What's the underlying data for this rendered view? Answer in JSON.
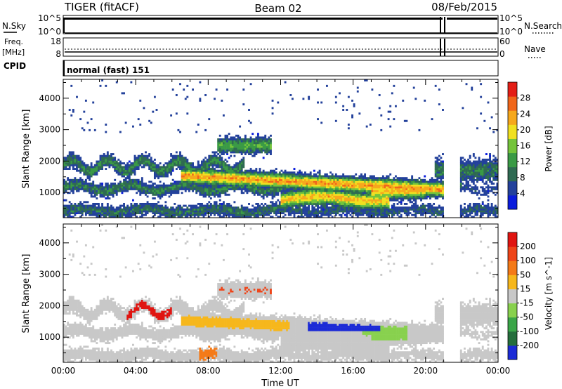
{
  "header": {
    "station": "TIGER (fitACF)",
    "beam": "Beam 02",
    "date": "08/Feb/2015"
  },
  "strip_nsky": {
    "left_label": "N.Sky",
    "right_label": "N.Search",
    "left_ticks": [
      "10^5",
      "10^0"
    ],
    "right_ticks": [
      "10^5",
      "10^0"
    ]
  },
  "strip_freq": {
    "left_label_1": "Freq.",
    "left_label_2": "[MHz]",
    "right_label": "Nave",
    "left_ticks": [
      "18",
      "8"
    ],
    "right_ticks": [
      "60",
      "0"
    ]
  },
  "cpid": {
    "label": "CPID",
    "value": "normal (fast) 151"
  },
  "chart_data": [
    {
      "type": "heatmap",
      "title": "",
      "ylabel": "Slant Range [km]",
      "xlabel": "",
      "xlim": [
        0,
        24
      ],
      "ylim": [
        200,
        4600
      ],
      "x_ticks": [],
      "y_ticks": [
        "1000",
        "2000",
        "3000",
        "4000"
      ],
      "colorbar": {
        "label": "Power [dB]",
        "ticks": [
          "28",
          "24",
          "20",
          "16",
          "12",
          "8",
          "4"
        ],
        "range": [
          0,
          32
        ],
        "colors": [
          "#0a1cdc",
          "#23419b",
          "#2f6a52",
          "#3a9a45",
          "#74c43b",
          "#f0e020",
          "#f6a81c",
          "#f0661a",
          "#e41e16"
        ]
      }
    },
    {
      "type": "heatmap",
      "title": "",
      "ylabel": "Slant Range [km]",
      "xlabel": "Time UT",
      "xlim": [
        0,
        24
      ],
      "ylim": [
        200,
        4600
      ],
      "x_ticks": [
        "00:00",
        "04:00",
        "08:00",
        "12:00",
        "16:00",
        "20:00",
        "00:00"
      ],
      "y_ticks": [
        "1000",
        "2000",
        "3000",
        "4000"
      ],
      "colorbar": {
        "label": "Velocity [m s^-1]",
        "ticks": [
          "200",
          "100",
          "50",
          "15",
          "-15",
          "-50",
          "-100",
          "-200"
        ],
        "colors": [
          "#1c2bd6",
          "#256e3c",
          "#3aa548",
          "#88d14e",
          "#c8c8c8",
          "#f6b71c",
          "#f47a18",
          "#ee4418",
          "#e01410"
        ]
      }
    }
  ]
}
